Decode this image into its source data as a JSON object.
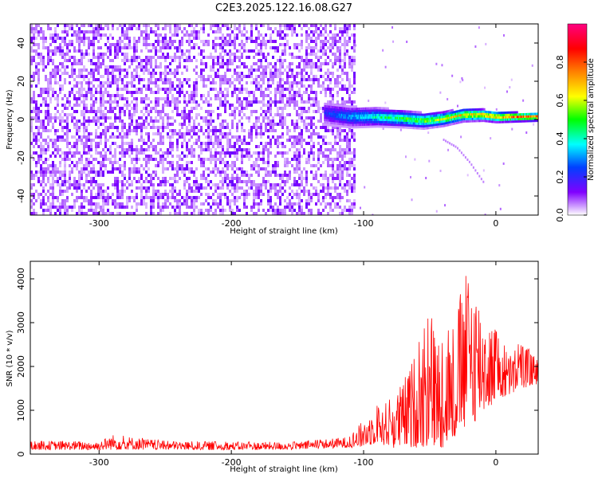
{
  "title": "C2E3.2025.122.16.08.G27",
  "chart_data": [
    {
      "type": "heatmap",
      "xlabel": "Height of straight line (km)",
      "ylabel": "Frequency (Hz)",
      "xlim": [
        -352,
        32
      ],
      "ylim": [
        -50,
        50
      ],
      "xticks": [
        -300,
        -200,
        -100,
        0
      ],
      "yticks": [
        -40,
        -20,
        0,
        20,
        40
      ],
      "colorbar": {
        "label": "Normalized spectral amplitude",
        "range": [
          0,
          1
        ],
        "ticks": [
          0.0,
          0.2,
          0.4,
          0.6,
          0.8
        ],
        "tick_labels": [
          "0.0",
          "0.2",
          "0.4",
          "0.6",
          "0.8"
        ],
        "colors": [
          "#ffffff",
          "#8000ff",
          "#0040ff",
          "#00ffff",
          "#00ff00",
          "#ffff00",
          "#ff8000",
          "#ff0000",
          "#ff0080"
        ]
      },
      "features": {
        "noise_region_x": [
          -352,
          -107
        ],
        "signal_track": {
          "x": [
            -130,
            -110,
            -90,
            -70,
            -55,
            -40,
            -25,
            -10,
            0,
            15,
            32
          ],
          "y": [
            4,
            2,
            2,
            1,
            0,
            1,
            3,
            3,
            2,
            2,
            2
          ],
          "peak_amplitude": 1.0
        },
        "secondary_track": {
          "x": [
            -40,
            -30,
            -20,
            -10
          ],
          "y": [
            -10,
            -14,
            -22,
            -32
          ]
        }
      }
    },
    {
      "type": "line",
      "xlabel": "Height of straight line (km)",
      "ylabel": "SNR (10 * v/v)",
      "xlim": [
        -352,
        32
      ],
      "ylim": [
        0,
        4400
      ],
      "xticks": [
        -300,
        -200,
        -100,
        0
      ],
      "yticks": [
        0,
        1000,
        2000,
        3000,
        4000
      ],
      "color": "#ff0000",
      "envelope": {
        "x": [
          -352,
          -300,
          -290,
          -250,
          -200,
          -150,
          -110,
          -100,
          -90,
          -80,
          -70,
          -60,
          -50,
          -40,
          -30,
          -20,
          -10,
          0,
          10,
          20,
          32
        ],
        "upper": [
          300,
          300,
          450,
          300,
          280,
          280,
          400,
          800,
          1100,
          1250,
          1700,
          2400,
          3200,
          2500,
          3300,
          4400,
          3500,
          2800,
          2300,
          2600,
          2100
        ],
        "lower": [
          100,
          90,
          100,
          100,
          90,
          100,
          150,
          150,
          250,
          150,
          100,
          150,
          100,
          150,
          300,
          600,
          900,
          1200,
          1300,
          1500,
          1600
        ]
      }
    }
  ]
}
